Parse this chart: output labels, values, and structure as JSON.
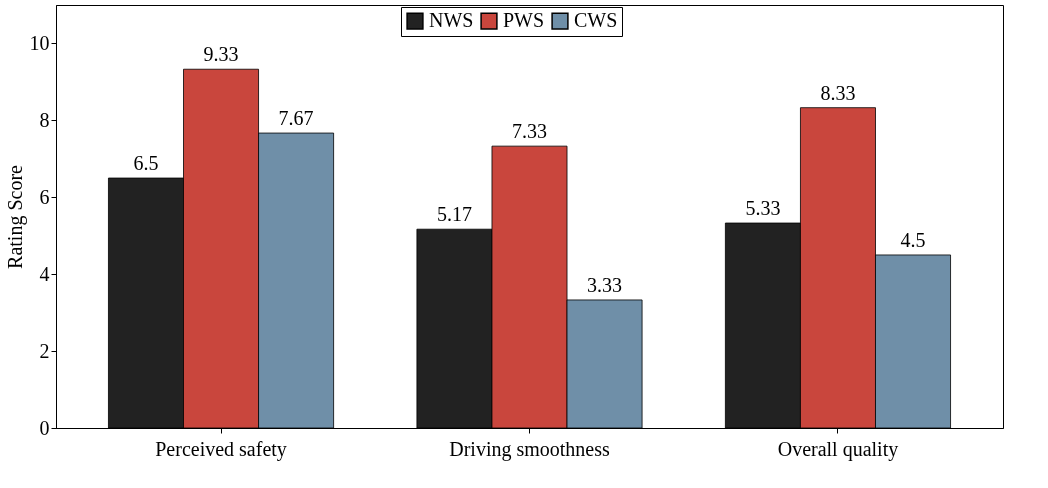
{
  "chart_data": {
    "type": "bar",
    "ylabel": "Rating Score",
    "categories": [
      "Perceived safety",
      "Driving smoothness",
      "Overall quality"
    ],
    "series": [
      {
        "name": "NWS",
        "color": "#222222",
        "values": [
          6.5,
          5.17,
          5.33
        ]
      },
      {
        "name": "PWS",
        "color": "#c9463d",
        "values": [
          9.33,
          7.33,
          8.33
        ]
      },
      {
        "name": "CWS",
        "color": "#6f8fa8",
        "values": [
          7.67,
          3.33,
          4.5
        ]
      }
    ],
    "ylim": [
      0,
      11
    ],
    "yticks": [
      0,
      2,
      4,
      6,
      8,
      10
    ],
    "grid": false,
    "legend": "top",
    "data_labels": true
  }
}
